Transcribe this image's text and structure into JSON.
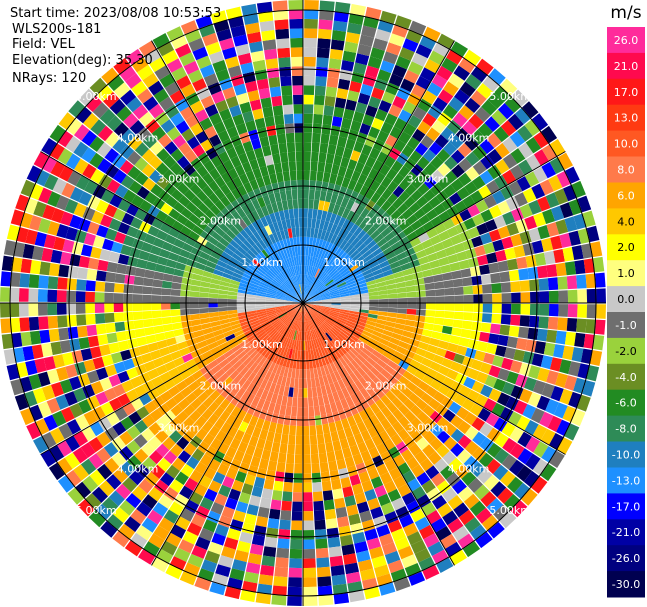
{
  "header": {
    "start_time": "Start time: 2023/08/08 10:53:53",
    "station": "WLS200s-181",
    "field": "Field: VEL",
    "elevation": "Elevation(deg): 35.30",
    "nrays": "NRays: 120"
  },
  "range_rings": {
    "labels": [
      "1.00km",
      "2.00km",
      "3.00km",
      "4.00km",
      "5.00km"
    ]
  },
  "colorbar": {
    "unit": "m/s",
    "ticks": [
      "26.0",
      "21.0",
      "17.0",
      "13.0",
      "10.0",
      "8.0",
      "6.0",
      "4.0",
      "2.0",
      "1.0",
      "0.0",
      "-1.0",
      "-2.0",
      "-4.0",
      "-6.0",
      "-8.0",
      "-10.0",
      "-13.0",
      "-17.0",
      "-21.0",
      "-26.0",
      "-30.0"
    ],
    "colors": [
      "#ff2b9b",
      "#ff0a4e",
      "#ff1818",
      "#ff3a12",
      "#ff5822",
      "#ff7a4a",
      "#ffa500",
      "#ffc800",
      "#ffff00",
      "#ffff7f",
      "#c8c8c8",
      "#6e6e6e",
      "#9ad23c",
      "#6b8e23",
      "#228b22",
      "#2e8b57",
      "#1f7fbf",
      "#1e90ff",
      "#0000ff",
      "#0000a5",
      "#000080",
      "#000050"
    ]
  }
}
